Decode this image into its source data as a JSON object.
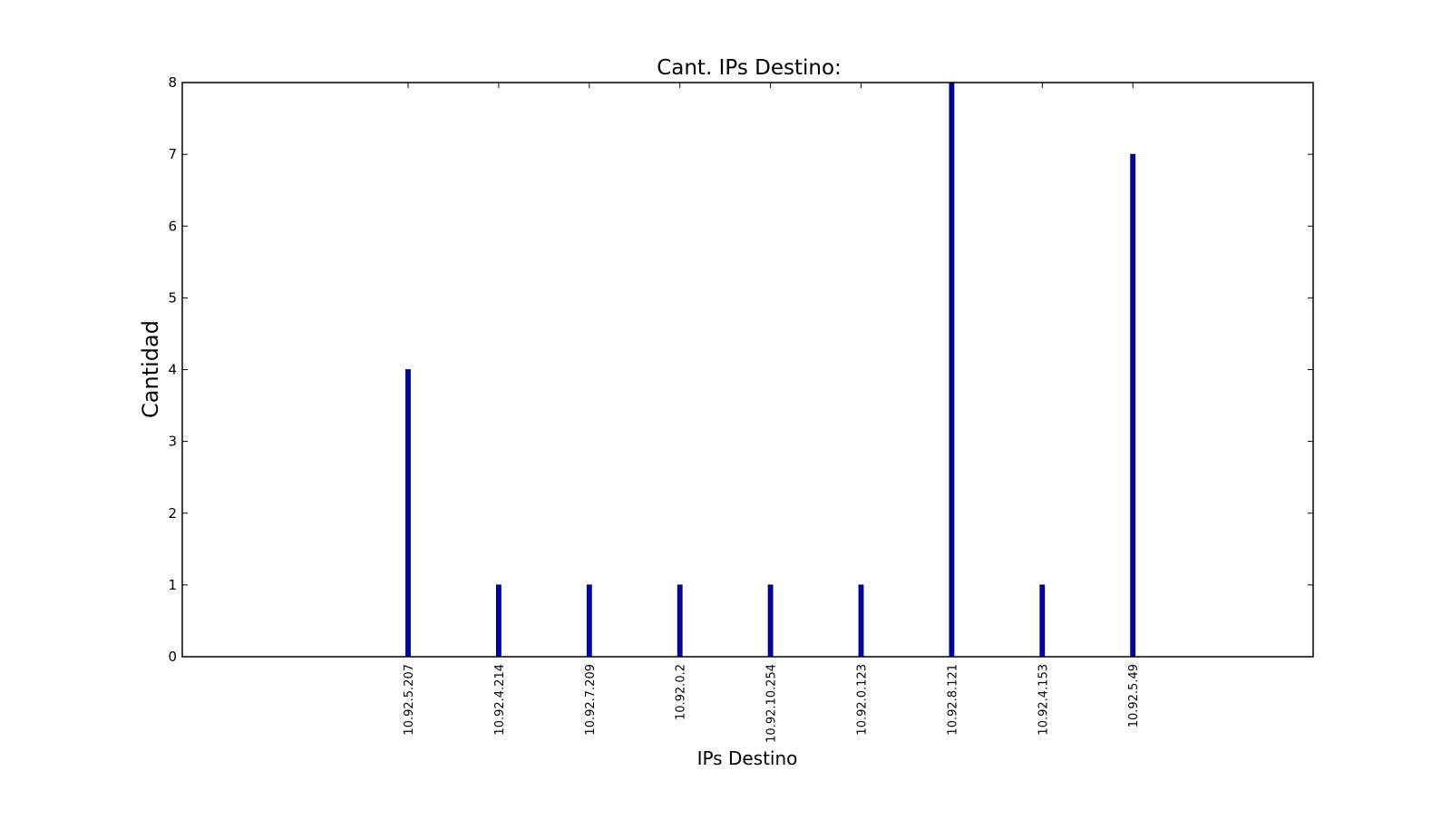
{
  "chart_data": {
    "type": "bar",
    "title": "Cant. IPs Destino:",
    "xlabel": "IPs Destino",
    "ylabel": "Cantidad",
    "categories": [
      "10.92.5.207",
      "10.92.4.214",
      "10.92.7.209",
      "10.92.0.2",
      "10.92.10.254",
      "10.92.0.123",
      "10.92.8.121",
      "10.92.4.153",
      "10.92.5.49"
    ],
    "values": [
      4,
      1,
      1,
      1,
      1,
      1,
      8,
      1,
      7
    ],
    "ylim": [
      0,
      8
    ],
    "yticks": [
      "0",
      "1",
      "2",
      "3",
      "4",
      "5",
      "6",
      "7",
      "8"
    ],
    "grid": false,
    "legend": "none",
    "colors": {
      "bar_fill": "#0000bf",
      "bar_edge": "#000000",
      "axes": "#000000"
    }
  }
}
